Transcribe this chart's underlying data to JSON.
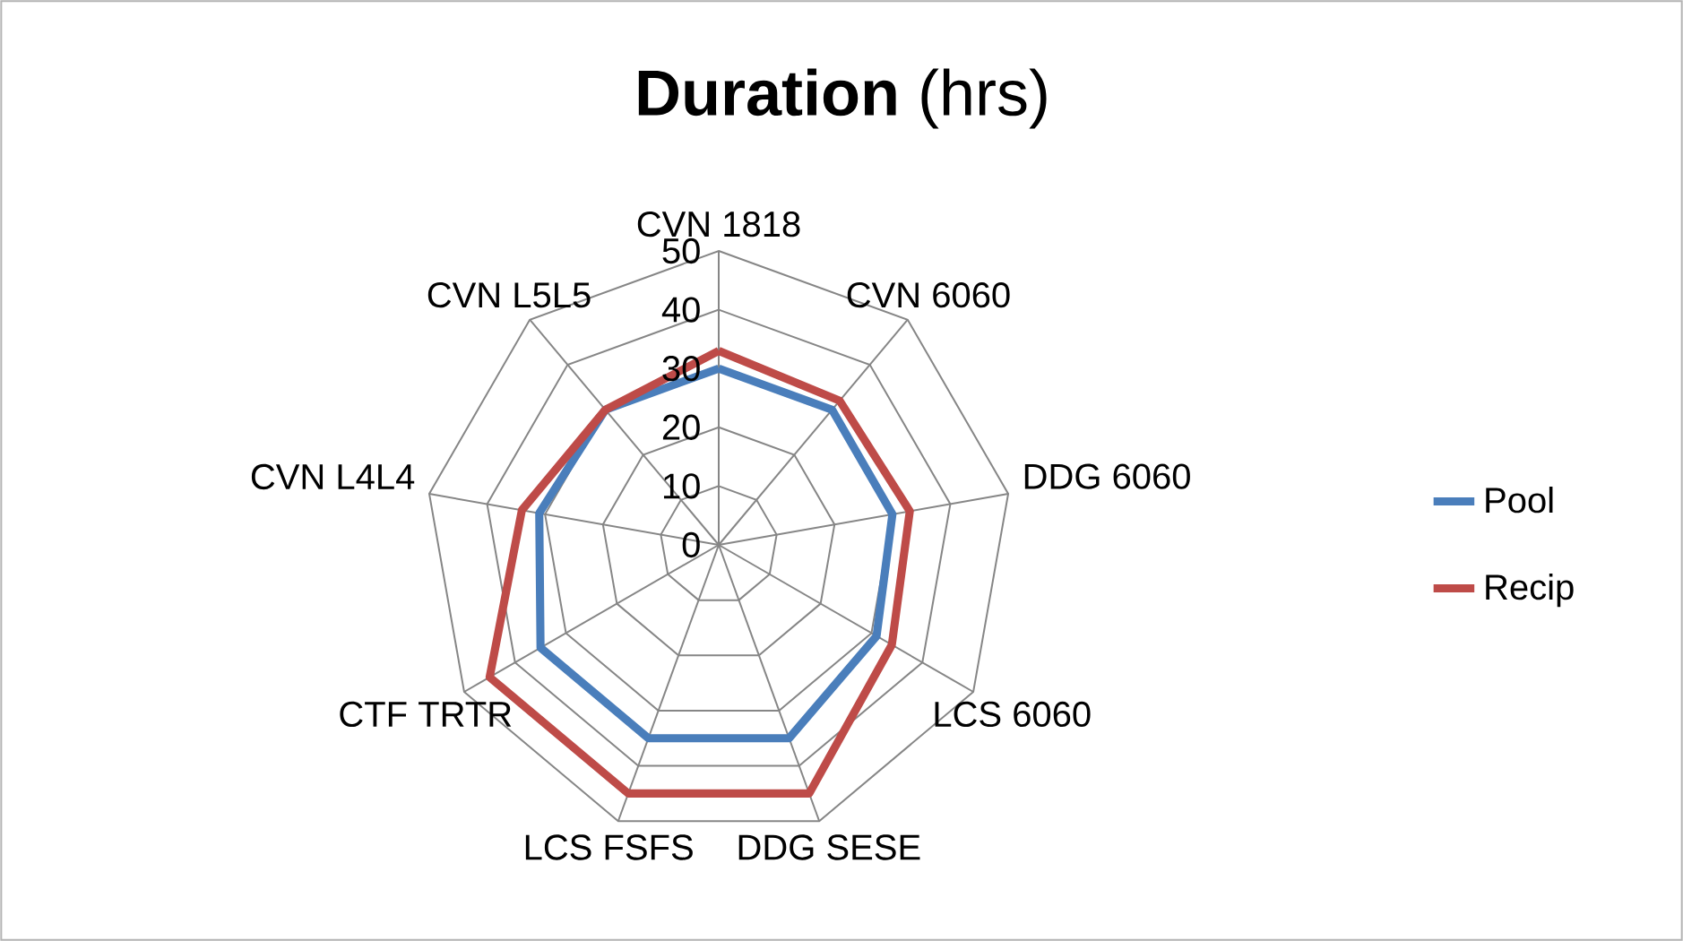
{
  "chart_data": {
    "type": "radar",
    "title": "**Duration** (hrs)",
    "categories": [
      "CVN 1818",
      "CVN 6060",
      "DDG 6060",
      "LCS 6060",
      "DDG SESE",
      "LCS FSFS",
      "CTF TRTR",
      "CVN L4L4",
      "CVN L5L5"
    ],
    "series": [
      {
        "name": "Pool",
        "color": "#4a7ebb",
        "values": [
          30,
          30,
          30,
          31,
          35,
          35,
          35,
          31,
          30
        ]
      },
      {
        "name": "Recip",
        "color": "#be4b48",
        "values": [
          33,
          32,
          33,
          34,
          45,
          45,
          45,
          34,
          30
        ]
      }
    ],
    "ylim": [
      0,
      50
    ],
    "yticks": [
      0,
      10,
      20,
      30,
      40,
      50
    ],
    "grid": true,
    "legend": "right",
    "marker": "none",
    "line_style": "solid"
  }
}
